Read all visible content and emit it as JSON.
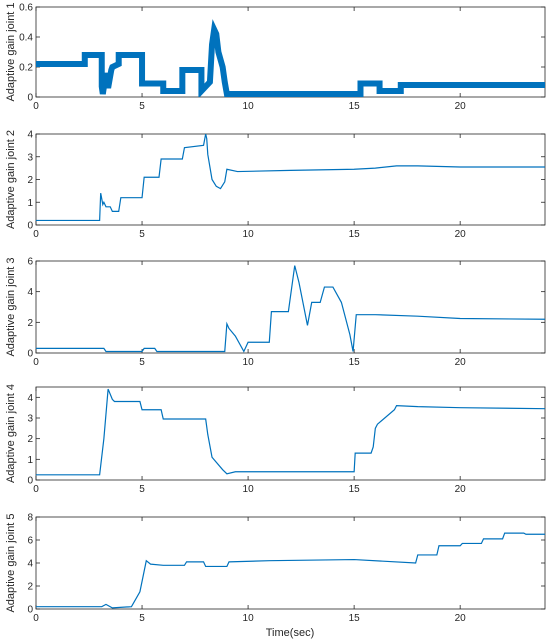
{
  "figure": {
    "xlabel": "Time(sec)",
    "line_color": "#0072BD"
  },
  "chart_data": [
    {
      "type": "line",
      "title": "",
      "xlabel": "",
      "ylabel": "Adaptive gain joint 1",
      "xlim": [
        0,
        24
      ],
      "ylim": [
        0,
        0.6
      ],
      "xticks": [
        0,
        5,
        10,
        15,
        20
      ],
      "xtick_labels": [
        "0",
        "5",
        "10",
        "15",
        "20"
      ],
      "yticks": [
        0,
        0.2,
        0.4,
        0.6
      ],
      "ytick_labels": [
        "0",
        "0.2",
        "0.4",
        "0.6"
      ],
      "band_width": 0.04,
      "grid": false,
      "series": [
        {
          "x": [
            0,
            2.3,
            2.3,
            3.1,
            3.1,
            3.15,
            3.3,
            3.4,
            3.55,
            3.6,
            3.9,
            3.9,
            5.0,
            5.0,
            6.0,
            6.0,
            6.9,
            6.9,
            7.8,
            7.8,
            8.2,
            8.3,
            8.4,
            8.5,
            8.6,
            8.8,
            8.9,
            9.0,
            15.3,
            15.3,
            16.2,
            16.2,
            17.2,
            17.2,
            24
          ],
          "y": [
            0.22,
            0.22,
            0.28,
            0.28,
            0.07,
            0.02,
            0.16,
            0.06,
            0.18,
            0.2,
            0.22,
            0.28,
            0.28,
            0.09,
            0.09,
            0.04,
            0.04,
            0.18,
            0.18,
            0.04,
            0.1,
            0.35,
            0.45,
            0.42,
            0.3,
            0.2,
            0.1,
            0.02,
            0.02,
            0.09,
            0.09,
            0.04,
            0.04,
            0.08,
            0.08
          ]
        }
      ]
    },
    {
      "type": "line",
      "title": "",
      "xlabel": "",
      "ylabel": "Adaptive gain joint 2",
      "xlim": [
        0,
        24
      ],
      "ylim": [
        0,
        4
      ],
      "xticks": [
        0,
        5,
        10,
        15,
        20
      ],
      "xtick_labels": [
        "0",
        "5",
        "10",
        "15",
        "20"
      ],
      "yticks": [
        0,
        1,
        2,
        3,
        4
      ],
      "ytick_labels": [
        "0",
        "1",
        "2",
        "3",
        "4"
      ],
      "grid": false,
      "series": [
        {
          "x": [
            0,
            3.0,
            3.05,
            3.15,
            3.2,
            3.3,
            3.5,
            3.6,
            3.9,
            4.0,
            5.0,
            5.1,
            5.8,
            5.9,
            6.9,
            7.0,
            7.9,
            8.0,
            8.05,
            8.1,
            8.3,
            8.5,
            8.7,
            8.9,
            9.0,
            9.5,
            12,
            15,
            16,
            17,
            18,
            20,
            24
          ],
          "y": [
            0.2,
            0.2,
            1.4,
            0.9,
            1.0,
            0.8,
            0.8,
            0.6,
            0.6,
            1.2,
            1.2,
            2.1,
            2.1,
            2.9,
            2.9,
            3.4,
            3.5,
            4.0,
            3.8,
            3.1,
            2.0,
            1.7,
            1.6,
            1.9,
            2.45,
            2.35,
            2.4,
            2.45,
            2.5,
            2.6,
            2.6,
            2.55,
            2.55
          ]
        }
      ]
    },
    {
      "type": "line",
      "title": "",
      "xlabel": "",
      "ylabel": "Adaptive gain joint 3",
      "xlim": [
        0,
        24
      ],
      "ylim": [
        0,
        6
      ],
      "xticks": [
        0,
        5,
        10,
        15,
        20
      ],
      "xtick_labels": [
        "0",
        "5",
        "10",
        "15",
        "20"
      ],
      "yticks": [
        0,
        2,
        4,
        6
      ],
      "ytick_labels": [
        "0",
        "2",
        "4",
        "6"
      ],
      "grid": false,
      "series": [
        {
          "x": [
            0,
            3.2,
            3.3,
            5.0,
            5.1,
            5.6,
            5.7,
            8.9,
            9.0,
            9.1,
            9.4,
            9.8,
            10.0,
            11.0,
            11.1,
            11.9,
            12.2,
            12.4,
            12.8,
            13.0,
            13.4,
            13.6,
            14.0,
            14.4,
            14.8,
            14.95,
            15.1,
            16,
            18,
            20,
            24
          ],
          "y": [
            0.3,
            0.3,
            0.1,
            0.1,
            0.3,
            0.3,
            0.1,
            0.1,
            1.9,
            1.6,
            1.1,
            0.1,
            0.7,
            0.7,
            2.7,
            2.7,
            5.7,
            4.6,
            1.8,
            3.3,
            3.3,
            4.3,
            4.3,
            3.3,
            1.2,
            0.1,
            2.5,
            2.5,
            2.4,
            2.25,
            2.2
          ]
        }
      ]
    },
    {
      "type": "line",
      "title": "",
      "xlabel": "",
      "ylabel": "Adaptive gain joint 4",
      "xlim": [
        0,
        24
      ],
      "ylim": [
        0,
        4.5
      ],
      "xticks": [
        0,
        5,
        10,
        15,
        20
      ],
      "xtick_labels": [
        "0",
        "5",
        "10",
        "15",
        "20"
      ],
      "yticks": [
        0,
        1,
        2,
        3,
        4
      ],
      "ytick_labels": [
        "0",
        "1",
        "2",
        "3",
        "4"
      ],
      "grid": false,
      "series": [
        {
          "x": [
            0,
            3.0,
            3.2,
            3.4,
            3.6,
            3.7,
            4.9,
            5.0,
            5.9,
            6.0,
            8.0,
            8.1,
            8.3,
            8.8,
            9.0,
            9.4,
            12,
            15.0,
            15.05,
            15.8,
            15.9,
            16.0,
            16.1,
            16.9,
            17.0,
            18,
            20,
            24
          ],
          "y": [
            0.25,
            0.25,
            2.0,
            4.4,
            3.9,
            3.8,
            3.8,
            3.4,
            3.4,
            2.95,
            2.95,
            2.2,
            1.1,
            0.5,
            0.3,
            0.4,
            0.4,
            0.4,
            1.3,
            1.3,
            1.6,
            2.5,
            2.7,
            3.4,
            3.6,
            3.55,
            3.5,
            3.45
          ]
        }
      ]
    },
    {
      "type": "line",
      "title": "",
      "xlabel": "Time(sec)",
      "ylabel": "Adaptive gain joint 5",
      "xlim": [
        0,
        24
      ],
      "ylim": [
        0,
        8
      ],
      "xticks": [
        0,
        5,
        10,
        15,
        20
      ],
      "xtick_labels": [
        "0",
        "5",
        "10",
        "15",
        "20"
      ],
      "yticks": [
        0,
        2,
        4,
        6,
        8
      ],
      "ytick_labels": [
        "0",
        "2",
        "4",
        "6",
        "8"
      ],
      "grid": false,
      "series": [
        {
          "x": [
            0,
            3.1,
            3.3,
            3.6,
            4.5,
            4.9,
            5.2,
            5.4,
            6.0,
            7.0,
            7.1,
            7.9,
            8.0,
            9.0,
            9.1,
            11,
            15,
            17.9,
            18.0,
            18.9,
            19.0,
            20.0,
            20.1,
            21.0,
            21.1,
            22.0,
            22.1,
            23.0,
            23.1,
            24
          ],
          "y": [
            0.2,
            0.2,
            0.4,
            0.1,
            0.2,
            1.5,
            4.2,
            3.9,
            3.8,
            3.8,
            4.1,
            4.1,
            3.7,
            3.7,
            4.1,
            4.2,
            4.3,
            4.0,
            4.7,
            4.7,
            5.5,
            5.5,
            5.7,
            5.7,
            6.1,
            6.1,
            6.6,
            6.6,
            6.5,
            6.5
          ]
        }
      ]
    }
  ]
}
